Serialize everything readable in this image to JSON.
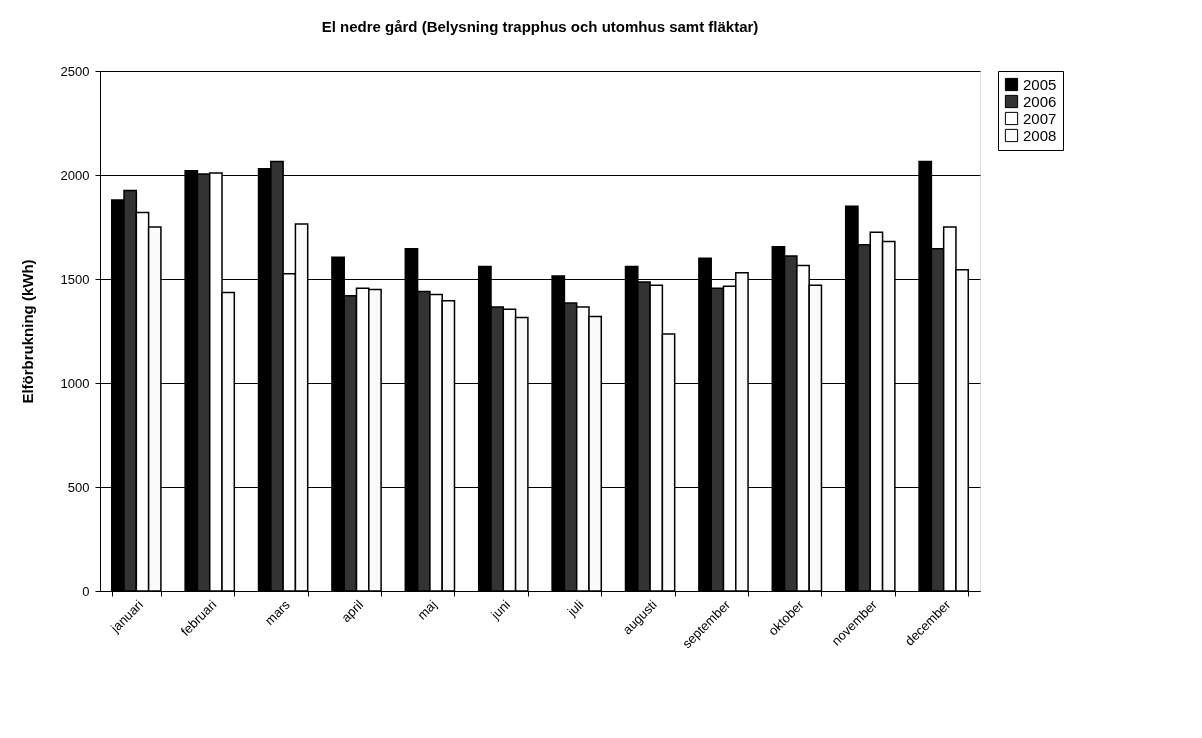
{
  "chart_data": {
    "type": "bar",
    "title": "El nedre gård (Belysning trapphus och utomhus samt fläktar)",
    "ylabel": "Elförbrukning (kWh)",
    "categories": [
      "januari",
      "februari",
      "mars",
      "april",
      "maj",
      "juni",
      "juli",
      "augusti",
      "september",
      "oktober",
      "november",
      "december"
    ],
    "series": [
      {
        "name": "2005",
        "color": "#000000",
        "values": [
          1880,
          2020,
          2030,
          1605,
          1645,
          1560,
          1515,
          1560,
          1600,
          1655,
          1850,
          2065
        ]
      },
      {
        "name": "2006",
        "color": "#333333",
        "values": [
          1925,
          2005,
          2065,
          1420,
          1440,
          1365,
          1385,
          1485,
          1455,
          1610,
          1665,
          1645
        ]
      },
      {
        "name": "2007",
        "color": "#ffffff",
        "values": [
          1820,
          2010,
          1525,
          1455,
          1425,
          1355,
          1365,
          1470,
          1465,
          1565,
          1725,
          1750
        ]
      },
      {
        "name": "2008",
        "color": "#fafafa",
        "values": [
          1750,
          1435,
          1765,
          1450,
          1395,
          1315,
          1320,
          1235,
          1530,
          1470,
          1680,
          1545
        ]
      }
    ],
    "ylim": [
      0,
      2500
    ],
    "yticks": [
      0,
      500,
      1000,
      1500,
      2000,
      2500
    ],
    "grid": "y",
    "legend": "right"
  }
}
